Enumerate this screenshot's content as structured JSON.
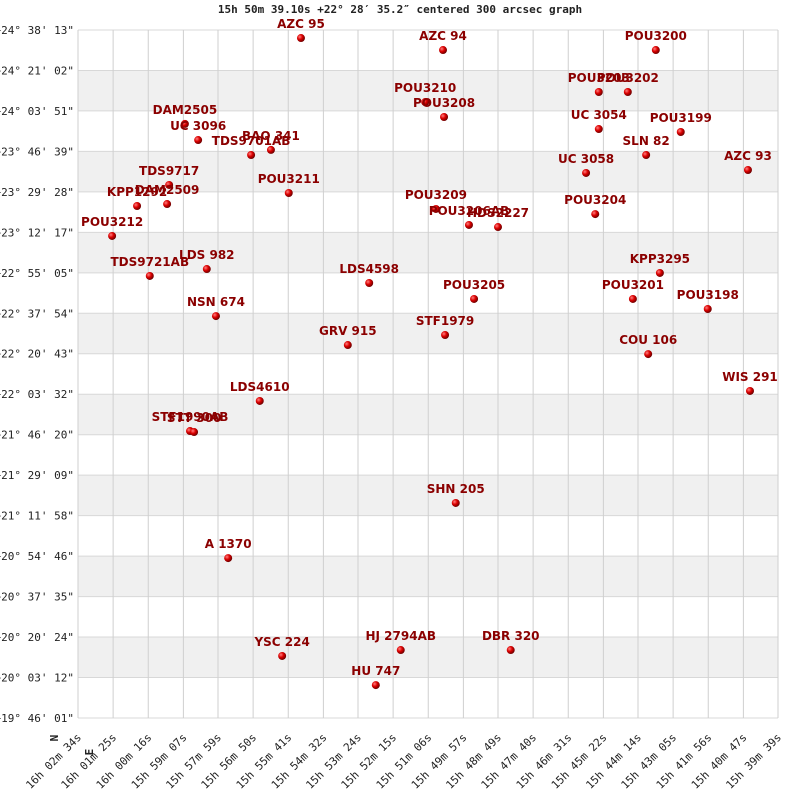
{
  "chart_data": {
    "type": "scatter",
    "title": "15h 50m 39.10s +22° 28′ 35.2″ centered 300 arcsec graph",
    "compass": {
      "north": "N",
      "east": "E"
    },
    "color": "#cc0000",
    "label_color": "#8b0000",
    "grid": true,
    "banded": true,
    "xlim": [
      57754,
      56379
    ],
    "xticks": [
      {
        "value": 57754,
        "label": "16h 02m 34s"
      },
      {
        "value": 57685,
        "label": "16h 01m 25s"
      },
      {
        "value": 57616,
        "label": "16h 00m 16s"
      },
      {
        "value": 57547,
        "label": "15h 59m 07s"
      },
      {
        "value": 57479,
        "label": "15h 57m 59s"
      },
      {
        "value": 57410,
        "label": "15h 56m 50s"
      },
      {
        "value": 57341,
        "label": "15h 55m 41s"
      },
      {
        "value": 57272,
        "label": "15h 54m 32s"
      },
      {
        "value": 57204,
        "label": "15h 53m 24s"
      },
      {
        "value": 57135,
        "label": "15h 52m 15s"
      },
      {
        "value": 57066,
        "label": "15h 51m 06s"
      },
      {
        "value": 56997,
        "label": "15h 49m 57s"
      },
      {
        "value": 56929,
        "label": "15h 48m 49s"
      },
      {
        "value": 56860,
        "label": "15h 47m 40s"
      },
      {
        "value": 56791,
        "label": "15h 46m 31s"
      },
      {
        "value": 56722,
        "label": "15h 45m 22s"
      },
      {
        "value": 56654,
        "label": "15h 44m 14s"
      },
      {
        "value": 56585,
        "label": "15h 43m 05s"
      },
      {
        "value": 56516,
        "label": "15h 41m 56s"
      },
      {
        "value": 56447,
        "label": "15h 40m 47s"
      },
      {
        "value": 56379,
        "label": "15h 39m 39s"
      }
    ],
    "ylim": [
      19.7669,
      24.6369
    ],
    "yticks": [
      {
        "value": 19.7669,
        "label": "+19° 46' 01\""
      },
      {
        "value": 20.0533,
        "label": "+20° 03' 12\""
      },
      {
        "value": 20.34,
        "label": "+20° 20' 24\""
      },
      {
        "value": 20.6264,
        "label": "+20° 37' 35\""
      },
      {
        "value": 20.9128,
        "label": "+20° 54' 46\""
      },
      {
        "value": 21.1994,
        "label": "+21° 11' 58\""
      },
      {
        "value": 21.4858,
        "label": "+21° 29' 09\""
      },
      {
        "value": 21.7722,
        "label": "+21° 46' 20\""
      },
      {
        "value": 22.0589,
        "label": "+22° 03' 32\""
      },
      {
        "value": 22.3453,
        "label": "+22° 20' 43\""
      },
      {
        "value": 22.6317,
        "label": "+22° 37' 54\""
      },
      {
        "value": 22.9181,
        "label": "+22° 55' 05\""
      },
      {
        "value": 23.2047,
        "label": "+23° 12' 17\""
      },
      {
        "value": 23.4911,
        "label": "+23° 29' 28\""
      },
      {
        "value": 23.7775,
        "label": "+23° 46' 39\""
      },
      {
        "value": 24.0642,
        "label": "+24° 03' 51\""
      },
      {
        "value": 24.3506,
        "label": "+24° 21' 02\""
      },
      {
        "value": 24.6369,
        "label": "+24° 38' 13\""
      }
    ],
    "labels": [
      "AZC  95",
      "AZC  94",
      "POU3200",
      "POU3203",
      "POU3202",
      "POU3210",
      "POU3208",
      "DAM2505",
      "UC 3096",
      "UC 3054",
      "POU3199",
      "BAO 341",
      "TDS9701AB",
      "SLN  82",
      "AZC  93",
      "UC 3058",
      "TDS9717",
      "DAM2509",
      "KPP1292",
      "POU3211",
      "POU3209",
      "POU3206AB",
      "HDS2227",
      "POU3204",
      "POU3212",
      "TDS9721AB",
      "LDS 982",
      "LDS4598",
      "KPP3295",
      "POU3205",
      "POU3201",
      "POU3198",
      "NSN 674",
      "STF1979",
      "GRV 915",
      "COU 106",
      "LDS4610",
      "WIS 291",
      "STF1990AB",
      "STT 300",
      "SHN 205",
      "A  1370",
      "YSC 224",
      "HJ 2794AB",
      "DBR 320",
      "HU  747"
    ],
    "x": [
      57316,
      57037,
      56619,
      56731,
      56674,
      57072,
      57035,
      57544,
      57518,
      56731,
      56570,
      57375,
      57414,
      56638,
      56438,
      56756,
      57575,
      57579,
      57638,
      57340,
      57051,
      56986,
      56929,
      56738,
      57687,
      57613,
      57501,
      57182,
      56611,
      56976,
      56664,
      56517,
      57483,
      57033,
      57224,
      56634,
      57397,
      56434,
      57534,
      57526,
      57012,
      57459,
      57353,
      57120,
      56904,
      57169
    ],
    "values": [
      24.58,
      24.495,
      24.495,
      24.198,
      24.198,
      24.127,
      24.021,
      23.972,
      23.858,
      23.936,
      23.915,
      23.788,
      23.752,
      23.752,
      23.646,
      23.625,
      23.54,
      23.405,
      23.391,
      23.483,
      23.37,
      23.257,
      23.242,
      23.334,
      23.179,
      22.896,
      22.945,
      22.846,
      22.917,
      22.733,
      22.733,
      22.662,
      22.612,
      22.478,
      22.407,
      22.343,
      22.011,
      22.082,
      21.798,
      21.791,
      21.289,
      20.899,
      20.206,
      20.248,
      20.248,
      20.0
    ]
  }
}
